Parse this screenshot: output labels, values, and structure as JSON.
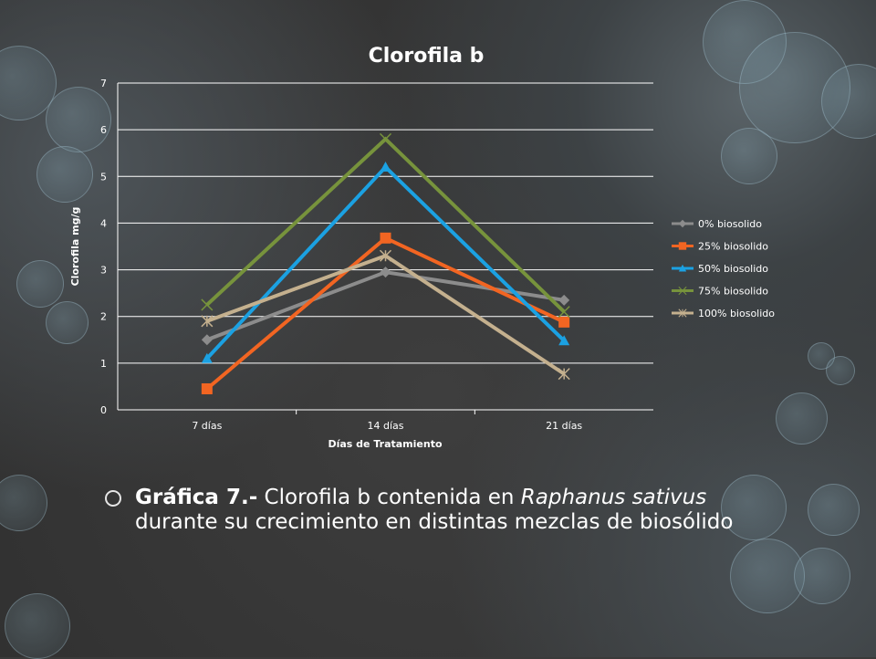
{
  "slide": {
    "caption_label": "Gráfica 7.-",
    "caption_text_1": " Clorofila b contenida en ",
    "caption_species": "Raphanus sativus",
    "caption_text_2": "durante su crecimiento en distintas mezclas de biosólido"
  },
  "chart_data": {
    "type": "line",
    "title": "Clorofila b",
    "xlabel": "Días de Tratamiento",
    "ylabel": "Clorofila mg/g",
    "categories": [
      "7 días",
      "14 días",
      "21 días"
    ],
    "ylim": [
      0,
      7
    ],
    "yticks": [
      0,
      1,
      2,
      3,
      4,
      5,
      6,
      7
    ],
    "grid": true,
    "legend_position": "right",
    "series": [
      {
        "name": "0% biosolido",
        "values": [
          1.5,
          2.95,
          2.35
        ],
        "color": "#8c8c8c",
        "marker": "diamond"
      },
      {
        "name": "25% biosolido",
        "values": [
          0.45,
          3.68,
          1.88
        ],
        "color": "#f26522",
        "marker": "square"
      },
      {
        "name": "50% biosolido",
        "values": [
          1.1,
          5.2,
          1.48
        ],
        "color": "#1ba1e2",
        "marker": "triangle"
      },
      {
        "name": "75% biosolido",
        "values": [
          2.25,
          5.8,
          2.1
        ],
        "color": "#77933c",
        "marker": "x"
      },
      {
        "name": "100% biosolido",
        "values": [
          1.9,
          3.3,
          0.77
        ],
        "color": "#c4b08e",
        "marker": "star"
      }
    ]
  }
}
